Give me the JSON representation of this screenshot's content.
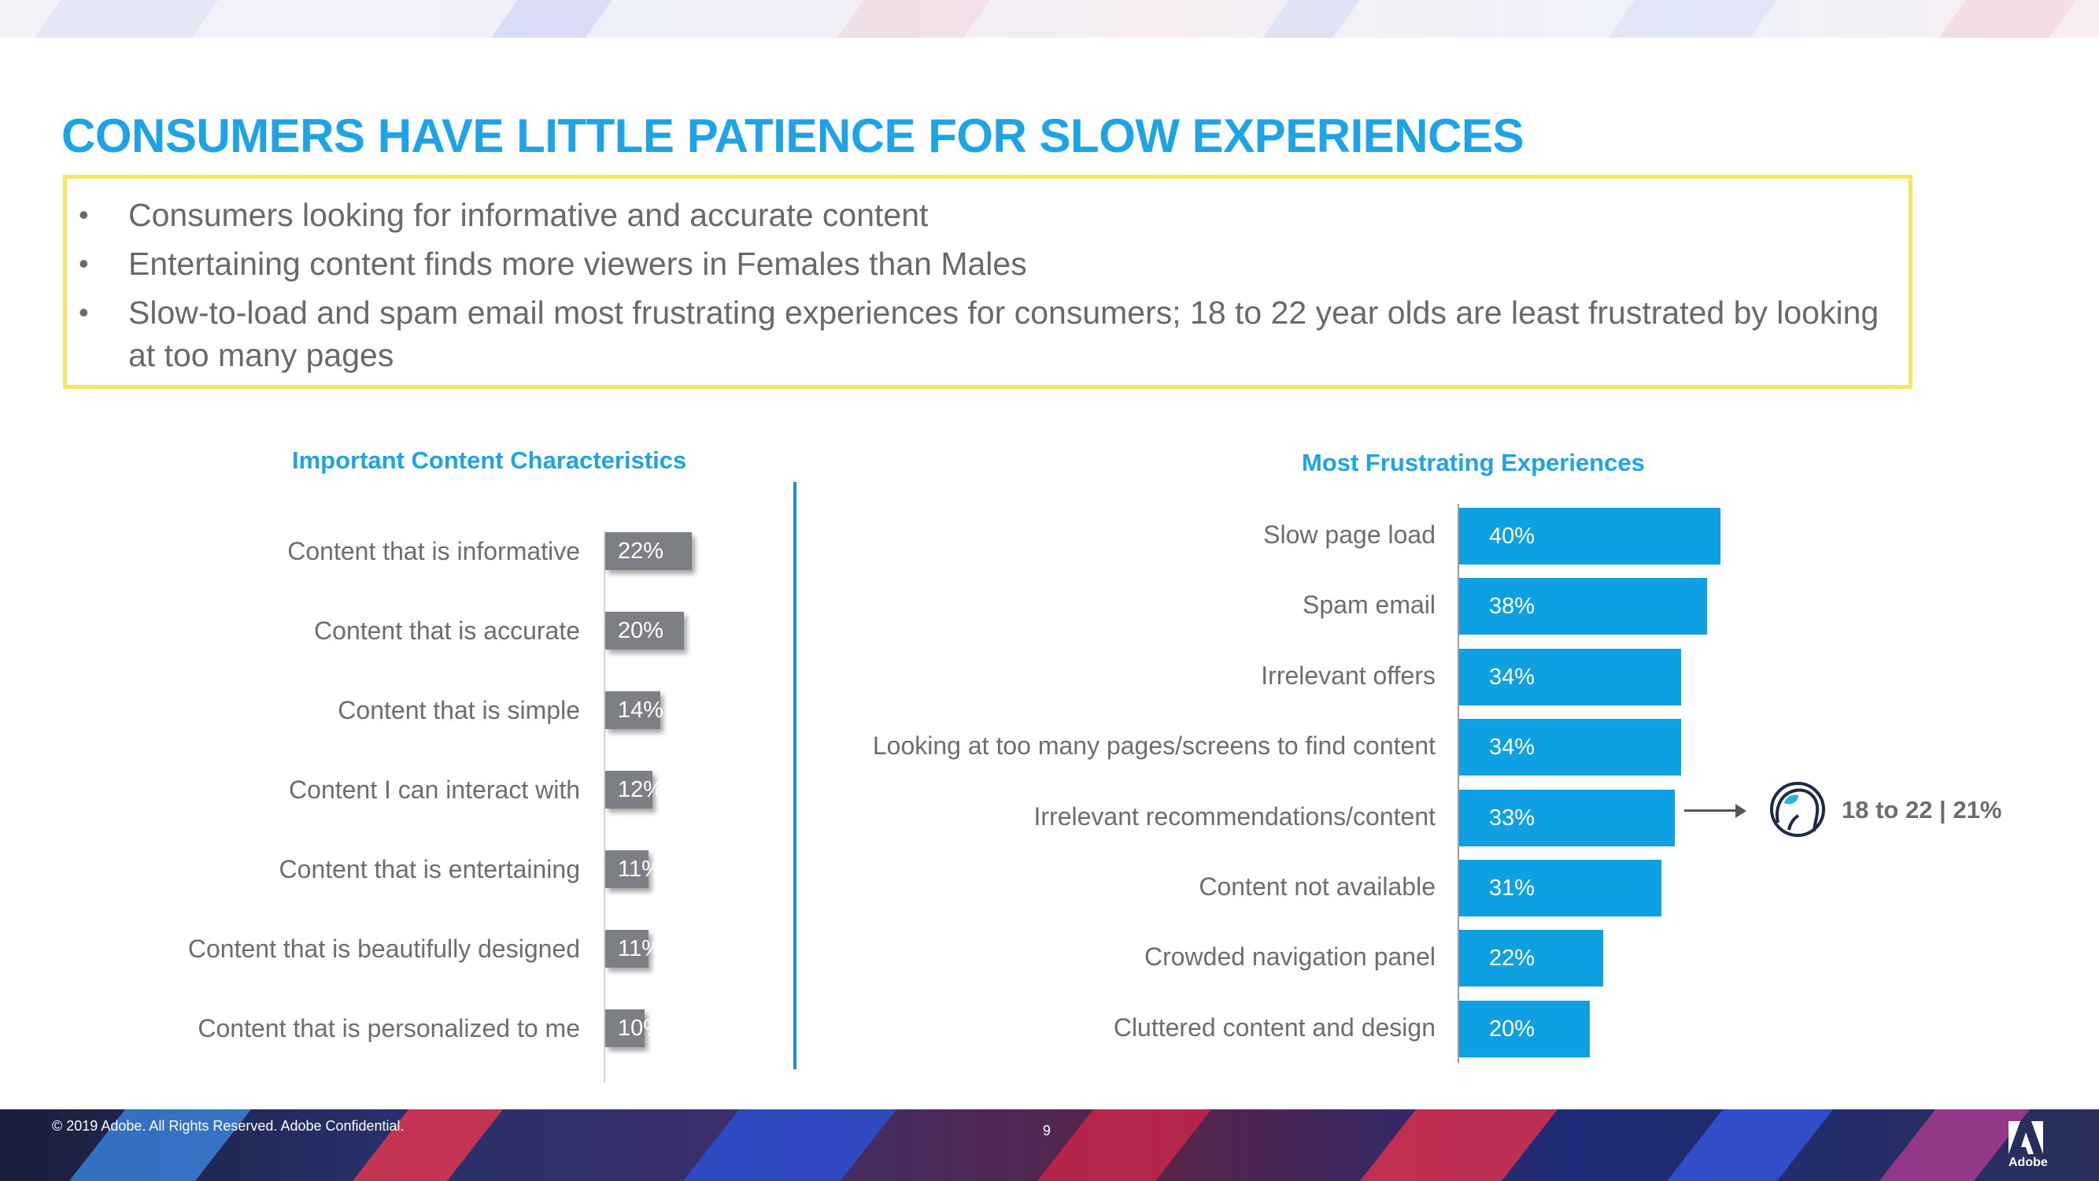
{
  "slide": {
    "title": "CONSUMERS HAVE LITTLE PATIENCE FOR SLOW EXPERIENCES",
    "bullets": [
      "Consumers looking for informative and accurate content",
      "Entertaining content finds more viewers in Females than Males",
      "Slow-to-load and spam email most frustrating experiences for consumers; 18 to 22 year olds are least frustrated by looking at too many pages"
    ],
    "bullet_glyph": "•",
    "footer": "© 2019 Adobe.  All Rights Reserved.  Adobe Confidential.",
    "page_number": "9",
    "logo_text": "Adobe",
    "colors": {
      "accent": "#1ea3e6",
      "bar_gray": "#7c7f83",
      "bar_blue": "#0ea0e2",
      "box_border": "#f5e663",
      "text_gray": "#6a6e72"
    }
  },
  "callout": {
    "icon": "persona-head-icon",
    "text": "18 to 22 | 21%"
  },
  "chart_data": [
    {
      "type": "bar",
      "orientation": "horizontal",
      "title": "Important Content Characteristics",
      "categories": [
        "Content that is informative",
        "Content that is accurate",
        "Content that is simple",
        "Content I can interact with",
        "Content that is entertaining",
        "Content that is beautifully designed",
        "Content that is personalized to me"
      ],
      "values": [
        22,
        20,
        14,
        12,
        11,
        11,
        10
      ],
      "value_labels": [
        "22%",
        "20%",
        "14%",
        "12%",
        "11%",
        "11%",
        "10%"
      ],
      "unit": "%",
      "xlim": [
        0,
        100
      ]
    },
    {
      "type": "bar",
      "orientation": "horizontal",
      "title": "Most Frustrating Experiences",
      "categories": [
        "Slow page load",
        "Spam email",
        "Irrelevant offers",
        "Looking at too many pages/screens to find content",
        "Irrelevant recommendations/content",
        "Content not available",
        "Crowded navigation panel",
        "Cluttered content and design"
      ],
      "values": [
        40,
        38,
        34,
        34,
        33,
        31,
        22,
        20
      ],
      "value_labels": [
        "40%",
        "38%",
        "34%",
        "34%",
        "33%",
        "31%",
        "22%",
        "20%"
      ],
      "unit": "%",
      "xlim": [
        0,
        100
      ]
    }
  ]
}
